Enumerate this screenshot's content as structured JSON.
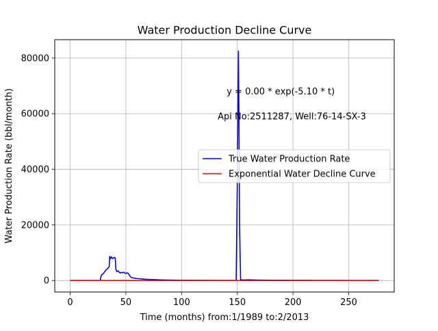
{
  "chart_data": {
    "type": "line",
    "title": "Water Production Decline Curve",
    "xlabel": "Time (months) from:1/1989 to:2/2013",
    "ylabel": "Water Production Rate (bbl/month)",
    "xlim": [
      -13.85,
      290.85
    ],
    "ylim": [
      -4131,
      86612
    ],
    "xticks": [
      0,
      50,
      100,
      150,
      200,
      250
    ],
    "yticks": [
      0,
      20000,
      40000,
      60000,
      80000
    ],
    "grid": true,
    "legend_position": "center-right",
    "annotations": [
      {
        "text": "y = 0.00 * exp(-5.10 * t)",
        "x": 189,
        "y": 67000
      },
      {
        "text": "Api No:2511287, Well:76-14-SX-3",
        "x": 199,
        "y": 58000
      }
    ],
    "series": [
      {
        "name": "True Water Production Rate",
        "color": "#0000ff",
        "points": [
          [
            0,
            0
          ],
          [
            10,
            0
          ],
          [
            20,
            0
          ],
          [
            27,
            0
          ],
          [
            27.5,
            1200
          ],
          [
            28,
            1900
          ],
          [
            30,
            2600
          ],
          [
            31,
            3200
          ],
          [
            32,
            3700
          ],
          [
            33,
            4100
          ],
          [
            34,
            4500
          ],
          [
            35,
            4900
          ],
          [
            35.5,
            8700
          ],
          [
            36,
            7800
          ],
          [
            37,
            8500
          ],
          [
            38,
            7900
          ],
          [
            39,
            8200
          ],
          [
            40,
            8300
          ],
          [
            40.5,
            7900
          ],
          [
            41,
            4000
          ],
          [
            42,
            3200
          ],
          [
            43,
            3500
          ],
          [
            44,
            3000
          ],
          [
            45,
            2700
          ],
          [
            46,
            2900
          ],
          [
            47,
            2800
          ],
          [
            48,
            3000
          ],
          [
            49,
            2700
          ],
          [
            50,
            2500
          ],
          [
            51,
            2800
          ],
          [
            52,
            2600
          ],
          [
            53,
            2000
          ],
          [
            54,
            1400
          ],
          [
            55,
            1100
          ],
          [
            57,
            900
          ],
          [
            60,
            700
          ],
          [
            63,
            600
          ],
          [
            66,
            500
          ],
          [
            70,
            400
          ],
          [
            75,
            350
          ],
          [
            80,
            250
          ],
          [
            85,
            200
          ],
          [
            90,
            150
          ],
          [
            95,
            120
          ],
          [
            100,
            100
          ],
          [
            110,
            80
          ],
          [
            120,
            60
          ],
          [
            130,
            50
          ],
          [
            140,
            40
          ],
          [
            148,
            30
          ],
          [
            149,
            30
          ],
          [
            150,
            35000
          ],
          [
            151,
            82500
          ],
          [
            151.5,
            60000
          ],
          [
            152,
            20000
          ],
          [
            153,
            300
          ],
          [
            155,
            200
          ],
          [
            160,
            250
          ],
          [
            170,
            150
          ],
          [
            180,
            100
          ],
          [
            190,
            100
          ],
          [
            200,
            80
          ],
          [
            210,
            60
          ],
          [
            220,
            50
          ],
          [
            230,
            40
          ],
          [
            240,
            30
          ],
          [
            250,
            20
          ],
          [
            260,
            15
          ],
          [
            270,
            10
          ],
          [
            277,
            5
          ]
        ]
      },
      {
        "name": "Exponential Water Decline Curve",
        "color": "#ff0000",
        "points": [
          [
            0,
            0
          ],
          [
            277,
            0
          ]
        ]
      }
    ]
  }
}
